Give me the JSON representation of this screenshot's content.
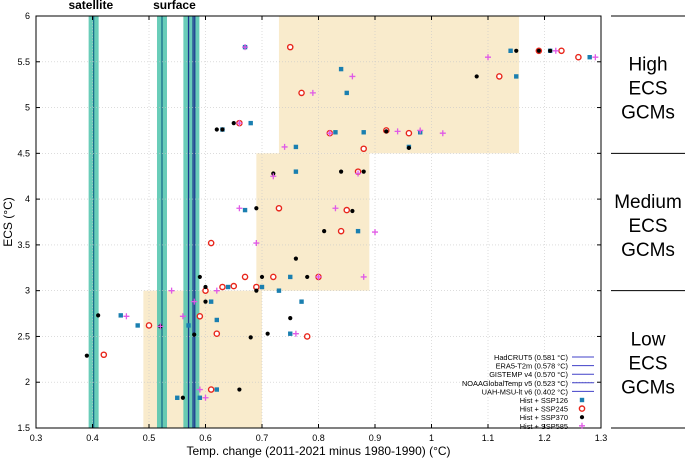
{
  "chart_data": {
    "type": "scatter",
    "xlabel": "Temp. change (2011-2021 minus 1980-1990) (°C)",
    "ylabel": "ECS (°C)",
    "xlim": [
      0.3,
      1.3
    ],
    "ylim": [
      1.5,
      6.0
    ],
    "xticks": [
      "0.3",
      "0.4",
      "0.5",
      "0.6",
      "0.7",
      "0.8",
      "0.9",
      "1",
      "1.1",
      "1.2",
      "1.3"
    ],
    "yticks": [
      "1.5",
      "2",
      "2.5",
      "3",
      "3.5",
      "4",
      "4.5",
      "5",
      "5.5",
      "6"
    ],
    "band_labels": [
      "satellite",
      "surface"
    ],
    "regions": [
      {
        "name": "Low ECS GCMs",
        "x": [
          0.49,
          0.7
        ],
        "y": [
          1.5,
          3.0
        ],
        "label_lines": [
          "Low",
          "ECS",
          "GCMs"
        ]
      },
      {
        "name": "Medium ECS GCMs",
        "x": [
          0.69,
          0.89
        ],
        "y": [
          3.0,
          4.5
        ],
        "label_lines": [
          "Medium",
          "ECS",
          "GCMs"
        ]
      },
      {
        "name": "High ECS GCMs",
        "x": [
          0.73,
          1.155
        ],
        "y": [
          4.5,
          6.0
        ],
        "label_lines": [
          "High",
          "ECS",
          "GCMs"
        ]
      }
    ],
    "observations": [
      {
        "name": "HadCRUT5 (0.581 °C)",
        "value": 0.581,
        "kind": "surface"
      },
      {
        "name": "ERA5-T2m (0.578 °C)",
        "value": 0.578,
        "kind": "surface"
      },
      {
        "name": "GISTEMP v4 (0.570 °C)",
        "value": 0.57,
        "kind": "surface"
      },
      {
        "name": "NOAAGlobalTemp v5 (0.523 °C)",
        "value": 0.523,
        "kind": "surface"
      },
      {
        "name": "UAH-MSU-lt v6 (0.402 °C)",
        "value": 0.402,
        "kind": "satellite"
      }
    ],
    "series": [
      {
        "name": "Hist + SSP126",
        "color": "#1a7fb0",
        "marker": "square",
        "points": [
          [
            0.45,
            2.73
          ],
          [
            0.48,
            2.62
          ],
          [
            0.55,
            1.83
          ],
          [
            0.57,
            2.62
          ],
          [
            0.59,
            1.83
          ],
          [
            0.61,
            2.88
          ],
          [
            0.62,
            1.92
          ],
          [
            0.62,
            2.68
          ],
          [
            0.63,
            3.04
          ],
          [
            0.63,
            4.76
          ],
          [
            0.64,
            3.04
          ],
          [
            0.67,
            5.66
          ],
          [
            0.67,
            3.88
          ],
          [
            0.68,
            4.83
          ],
          [
            0.7,
            3.04
          ],
          [
            0.73,
            3.0
          ],
          [
            0.75,
            2.53
          ],
          [
            0.75,
            3.15
          ],
          [
            0.76,
            4.3
          ],
          [
            0.76,
            4.57
          ],
          [
            0.77,
            2.88
          ],
          [
            0.8,
            3.15
          ],
          [
            0.83,
            4.73
          ],
          [
            0.84,
            5.42
          ],
          [
            0.85,
            5.16
          ],
          [
            0.87,
            3.65
          ],
          [
            0.88,
            4.73
          ],
          [
            0.96,
            4.57
          ],
          [
            0.98,
            4.73
          ],
          [
            1.14,
            5.62
          ],
          [
            1.15,
            5.34
          ],
          [
            1.21,
            5.62
          ],
          [
            1.28,
            5.55
          ]
        ]
      },
      {
        "name": "Hist + SSP245",
        "color": "#e8261b",
        "marker": "ring",
        "points": [
          [
            0.42,
            2.3
          ],
          [
            0.5,
            2.62
          ],
          [
            0.59,
            2.72
          ],
          [
            0.6,
            3.0
          ],
          [
            0.61,
            3.52
          ],
          [
            0.61,
            1.92
          ],
          [
            0.62,
            2.53
          ],
          [
            0.63,
            3.04
          ],
          [
            0.65,
            3.05
          ],
          [
            0.66,
            4.83
          ],
          [
            0.67,
            3.15
          ],
          [
            0.69,
            3.04
          ],
          [
            0.72,
            3.15
          ],
          [
            0.73,
            3.9
          ],
          [
            0.75,
            5.66
          ],
          [
            0.77,
            5.16
          ],
          [
            0.78,
            2.5
          ],
          [
            0.8,
            3.15
          ],
          [
            0.82,
            4.72
          ],
          [
            0.84,
            3.65
          ],
          [
            0.85,
            3.88
          ],
          [
            0.87,
            4.3
          ],
          [
            0.88,
            4.55
          ],
          [
            0.92,
            4.75
          ],
          [
            0.96,
            4.72
          ],
          [
            1.12,
            5.34
          ],
          [
            1.19,
            5.62
          ],
          [
            1.23,
            5.62
          ],
          [
            1.26,
            5.55
          ]
        ]
      },
      {
        "name": "Hist + SSP370",
        "color": "#000000",
        "marker": "dot",
        "points": [
          [
            0.39,
            2.29
          ],
          [
            0.41,
            2.73
          ],
          [
            0.52,
            2.61
          ],
          [
            0.56,
            1.83
          ],
          [
            0.58,
            2.52
          ],
          [
            0.59,
            3.15
          ],
          [
            0.6,
            2.88
          ],
          [
            0.6,
            3.04
          ],
          [
            0.62,
            4.76
          ],
          [
            0.63,
            4.76
          ],
          [
            0.65,
            4.83
          ],
          [
            0.66,
            1.92
          ],
          [
            0.68,
            2.49
          ],
          [
            0.69,
            3.0
          ],
          [
            0.69,
            3.9
          ],
          [
            0.7,
            3.15
          ],
          [
            0.71,
            2.53
          ],
          [
            0.72,
            4.28
          ],
          [
            0.75,
            2.7
          ],
          [
            0.76,
            3.35
          ],
          [
            0.78,
            3.15
          ],
          [
            0.81,
            3.65
          ],
          [
            0.84,
            4.3
          ],
          [
            0.86,
            3.87
          ],
          [
            0.88,
            4.3
          ],
          [
            0.92,
            4.74
          ],
          [
            0.96,
            4.56
          ],
          [
            1.08,
            5.34
          ],
          [
            1.15,
            5.62
          ],
          [
            1.19,
            5.62
          ],
          [
            1.21,
            5.62
          ]
        ]
      },
      {
        "name": "Hist + SSP585",
        "color": "#e05ae6",
        "marker": "plus",
        "points": [
          [
            0.46,
            2.72
          ],
          [
            0.52,
            2.61
          ],
          [
            0.54,
            3.0
          ],
          [
            0.56,
            2.72
          ],
          [
            0.58,
            2.88
          ],
          [
            0.59,
            1.92
          ],
          [
            0.6,
            1.83
          ],
          [
            0.62,
            3.0
          ],
          [
            0.66,
            4.83
          ],
          [
            0.66,
            3.9
          ],
          [
            0.67,
            5.66
          ],
          [
            0.69,
            3.52
          ],
          [
            0.72,
            4.25
          ],
          [
            0.74,
            4.57
          ],
          [
            0.76,
            2.53
          ],
          [
            0.79,
            5.16
          ],
          [
            0.8,
            3.15
          ],
          [
            0.82,
            4.72
          ],
          [
            0.83,
            3.9
          ],
          [
            0.86,
            5.34
          ],
          [
            0.87,
            4.28
          ],
          [
            0.88,
            3.15
          ],
          [
            0.9,
            3.64
          ],
          [
            0.94,
            4.74
          ],
          [
            0.98,
            4.75
          ],
          [
            1.02,
            4.72
          ],
          [
            1.1,
            5.55
          ],
          [
            1.22,
            5.62
          ],
          [
            1.29,
            5.55
          ]
        ]
      }
    ]
  }
}
